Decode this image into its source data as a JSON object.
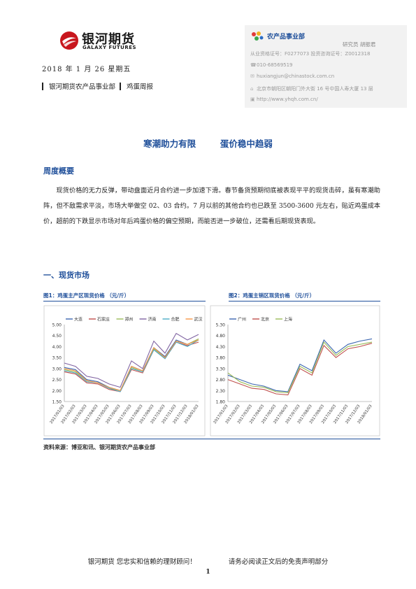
{
  "header": {
    "logo_cn": "银河期货",
    "logo_en": "GALAXY FUTURES",
    "date": "2018 年 1 月 26  星期五",
    "department": "银河期货农产品事业部",
    "report_type": "鸡蛋周报"
  },
  "contact": {
    "dept_name": "农产品事业部",
    "analyst": "研究员  胡振君",
    "license": "从业资格证号：F0277073   投资咨询证号：Z0012318",
    "phone": "010-68569519",
    "email": "huxiangjun@chinastock.com.cn",
    "address": "北京市朝阳区朝阳门外大街 16 号中国人寿大厦 13 层",
    "website": "http://www.yhqh.com.cn/",
    "icons": [
      "phone-icon",
      "email-icon",
      "address-icon",
      "web-icon"
    ]
  },
  "title": "寒潮助力有限        蛋价稳中趋弱",
  "weekly": {
    "heading": "周度概要",
    "text": "现货价格的无力反弹，带动盘面近月合约进一步加速下滑。春节备货预期彻底被表现平平的现货击碎，虽有寒潮助阵，但不敌需求平淡，市场大举做空 02、03 合约。7 月以前的其他合约也已跌至 3500-3600 元左右，贴近鸡蛋成本价，超前的下跌显示市场对年后鸡蛋价格的偏空预期，而能否进一步破位，还需看后期现货表现。"
  },
  "section1": {
    "heading": "一、现货市场"
  },
  "figures": [
    {
      "caption": "图1：鸡蛋主产区现货价格   （元/斤）"
    },
    {
      "caption": "图2：鸡蛋主销区现货价格   （元/斤）"
    }
  ],
  "source": "资料来源：博亚和讯、银河期货农产品事业部",
  "footer": {
    "left": "银河期货  您忠实和信赖的理财顾问！",
    "right": "请务必阅读正文后的免责声明部分",
    "page": "1"
  },
  "chart_data": [
    {
      "type": "line",
      "title": "",
      "y_ticks": [
        "5.00",
        "4.50",
        "4.00",
        "3.50",
        "3.00",
        "2.50",
        "2.00",
        "1.50"
      ],
      "ylim": [
        1.5,
        5.0
      ],
      "x_ticks": [
        "2017/01/03",
        "2017/02/03",
        "2017/03/03",
        "2017/04/03",
        "2017/05/03",
        "2017/06/03",
        "2017/07/03",
        "2017/08/03",
        "2017/09/03",
        "2017/10/03",
        "2017/11/03",
        "2017/12/03",
        "2018/01/03"
      ],
      "legend_position": "top",
      "series": [
        {
          "name": "大连",
          "color": "#3b66b0",
          "values": [
            3.05,
            2.95,
            2.5,
            2.4,
            2.15,
            2.0,
            3.1,
            2.9,
            3.95,
            3.55,
            4.3,
            4.1,
            4.3
          ]
        },
        {
          "name": "石家庄",
          "color": "#c0504d",
          "values": [
            2.85,
            2.75,
            2.35,
            2.3,
            2.05,
            1.95,
            2.95,
            2.8,
            3.85,
            3.45,
            4.2,
            4.05,
            4.2
          ]
        },
        {
          "name": "郑州",
          "color": "#9bbb59",
          "values": [
            2.95,
            2.85,
            2.45,
            2.35,
            2.1,
            2.0,
            3.05,
            2.85,
            3.9,
            3.5,
            4.25,
            4.1,
            4.35
          ]
        },
        {
          "name": "济南",
          "color": "#8064a2",
          "values": [
            3.25,
            3.1,
            2.65,
            2.55,
            2.3,
            2.15,
            3.35,
            3.0,
            4.25,
            3.7,
            4.6,
            4.3,
            4.55
          ]
        },
        {
          "name": "合肥",
          "color": "#4bacc6",
          "values": [
            2.9,
            2.8,
            2.4,
            2.35,
            2.1,
            1.95,
            3.0,
            2.85,
            3.85,
            3.45,
            4.2,
            4.0,
            4.3
          ]
        },
        {
          "name": "武汉",
          "color": "#f79646",
          "values": [
            3.0,
            2.9,
            2.45,
            2.35,
            2.15,
            2.0,
            3.1,
            2.9,
            3.95,
            3.5,
            4.25,
            4.1,
            4.3
          ]
        }
      ]
    },
    {
      "type": "line",
      "title": "",
      "y_ticks": [
        "5.30",
        "4.80",
        "4.30",
        "3.80",
        "3.30",
        "2.80",
        "2.30",
        "1.80"
      ],
      "ylim": [
        1.8,
        5.3
      ],
      "x_ticks": [
        "2017/01/03",
        "2017/02/03",
        "2017/03/03",
        "2017/04/03",
        "2017/05/03",
        "2017/06/03",
        "2017/07/03",
        "2017/08/03",
        "2017/09/03",
        "2017/10/03",
        "2017/11/03",
        "2017/12/03",
        "2018/01/03"
      ],
      "legend_position": "top",
      "series": [
        {
          "name": "广州",
          "color": "#3b66b0",
          "values": [
            3.0,
            2.8,
            2.6,
            2.5,
            2.3,
            2.25,
            3.5,
            3.2,
            4.6,
            4.0,
            4.4,
            4.55,
            4.65
          ]
        },
        {
          "name": "北京",
          "color": "#c0504d",
          "values": [
            2.8,
            2.6,
            2.4,
            2.35,
            2.15,
            2.1,
            3.3,
            3.0,
            4.35,
            3.8,
            4.2,
            4.3,
            4.45
          ]
        },
        {
          "name": "上海",
          "color": "#9bbb59",
          "values": [
            3.1,
            2.7,
            2.5,
            2.45,
            2.25,
            2.2,
            3.4,
            3.1,
            4.5,
            3.9,
            4.3,
            4.4,
            4.5
          ]
        }
      ]
    }
  ]
}
